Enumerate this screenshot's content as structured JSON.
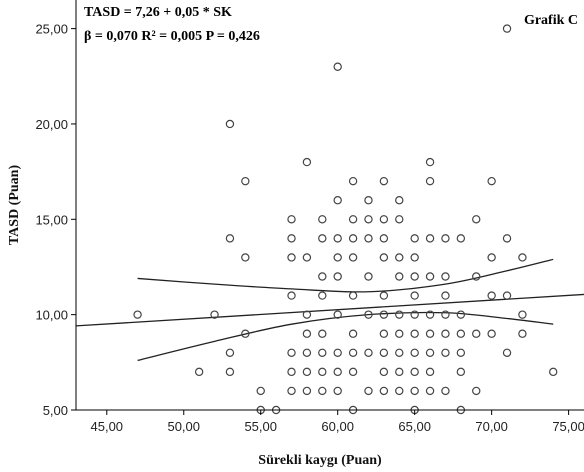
{
  "chart_data": {
    "type": "scatter",
    "panel_label": "Grafik C",
    "equation": "TASD = 7,26 + 0,05 * SK",
    "stats": "β = 0,070  R² = 0,005   P = 0,426",
    "xlabel": "Sürekli kaygı (Puan)",
    "ylabel": "TASD (Puan)",
    "xlim": [
      43.0,
      76.0
    ],
    "ylim": [
      5.0,
      26.5
    ],
    "x_ticks": [
      45,
      50,
      55,
      60,
      65,
      70,
      75
    ],
    "x_tick_labels": [
      "45,00",
      "50,00",
      "55,00",
      "60,00",
      "65,00",
      "70,00",
      "75,00"
    ],
    "y_ticks": [
      5,
      10,
      15,
      20,
      25
    ],
    "y_tick_labels": [
      "5,00",
      "10,00",
      "15,00",
      "20,00",
      "25,00"
    ],
    "grid": false,
    "regression_line": {
      "intercept": 7.26,
      "slope": 0.05
    },
    "ci_upper": [
      [
        47,
        11.9
      ],
      [
        52,
        11.6
      ],
      [
        57,
        11.35
      ],
      [
        62,
        11.2
      ],
      [
        67,
        11.6
      ],
      [
        71,
        12.3
      ],
      [
        74,
        12.9
      ]
    ],
    "ci_lower": [
      [
        47,
        7.6
      ],
      [
        52,
        8.6
      ],
      [
        57,
        9.5
      ],
      [
        62,
        10.0
      ],
      [
        67,
        10.1
      ],
      [
        71,
        9.8
      ],
      [
        74,
        9.5
      ]
    ],
    "points": [
      [
        47,
        10
      ],
      [
        51,
        7
      ],
      [
        52,
        10
      ],
      [
        53,
        20
      ],
      [
        53,
        14
      ],
      [
        53,
        8
      ],
      [
        53,
        7
      ],
      [
        54,
        17
      ],
      [
        54,
        13
      ],
      [
        54,
        9
      ],
      [
        55,
        6
      ],
      [
        55,
        5
      ],
      [
        56,
        5
      ],
      [
        57,
        15
      ],
      [
        57,
        14
      ],
      [
        57,
        13
      ],
      [
        57,
        11
      ],
      [
        57,
        8
      ],
      [
        57,
        7
      ],
      [
        57,
        6
      ],
      [
        58,
        18
      ],
      [
        58,
        13
      ],
      [
        58,
        10
      ],
      [
        58,
        9
      ],
      [
        58,
        8
      ],
      [
        58,
        7
      ],
      [
        58,
        6
      ],
      [
        59,
        15
      ],
      [
        59,
        14
      ],
      [
        59,
        12
      ],
      [
        59,
        11
      ],
      [
        59,
        9
      ],
      [
        59,
        8
      ],
      [
        59,
        7
      ],
      [
        59,
        6
      ],
      [
        60,
        23
      ],
      [
        60,
        16
      ],
      [
        60,
        14
      ],
      [
        60,
        13
      ],
      [
        60,
        12
      ],
      [
        60,
        10
      ],
      [
        60,
        8
      ],
      [
        60,
        7
      ],
      [
        60,
        6
      ],
      [
        61,
        17
      ],
      [
        61,
        15
      ],
      [
        61,
        14
      ],
      [
        61,
        13
      ],
      [
        61,
        11
      ],
      [
        61,
        9
      ],
      [
        61,
        8
      ],
      [
        61,
        7
      ],
      [
        61,
        5
      ],
      [
        62,
        16
      ],
      [
        62,
        15
      ],
      [
        62,
        14
      ],
      [
        62,
        12
      ],
      [
        62,
        10
      ],
      [
        62,
        8
      ],
      [
        62,
        6
      ],
      [
        63,
        17
      ],
      [
        63,
        15
      ],
      [
        63,
        14
      ],
      [
        63,
        13
      ],
      [
        63,
        11
      ],
      [
        63,
        10
      ],
      [
        63,
        9
      ],
      [
        63,
        8
      ],
      [
        63,
        7
      ],
      [
        63,
        6
      ],
      [
        64,
        16
      ],
      [
        64,
        15
      ],
      [
        64,
        13
      ],
      [
        64,
        12
      ],
      [
        64,
        10
      ],
      [
        64,
        9
      ],
      [
        64,
        8
      ],
      [
        64,
        7
      ],
      [
        64,
        6
      ],
      [
        65,
        14
      ],
      [
        65,
        13
      ],
      [
        65,
        12
      ],
      [
        65,
        11
      ],
      [
        65,
        10
      ],
      [
        65,
        9
      ],
      [
        65,
        8
      ],
      [
        65,
        7
      ],
      [
        65,
        6
      ],
      [
        65,
        5
      ],
      [
        66,
        18
      ],
      [
        66,
        17
      ],
      [
        66,
        14
      ],
      [
        66,
        12
      ],
      [
        66,
        10
      ],
      [
        66,
        9
      ],
      [
        66,
        8
      ],
      [
        66,
        7
      ],
      [
        66,
        6
      ],
      [
        67,
        14
      ],
      [
        67,
        12
      ],
      [
        67,
        11
      ],
      [
        67,
        10
      ],
      [
        67,
        9
      ],
      [
        67,
        8
      ],
      [
        67,
        6
      ],
      [
        68,
        14
      ],
      [
        68,
        10
      ],
      [
        68,
        9
      ],
      [
        68,
        8
      ],
      [
        68,
        7
      ],
      [
        68,
        5
      ],
      [
        69,
        15
      ],
      [
        69,
        12
      ],
      [
        69,
        9
      ],
      [
        69,
        6
      ],
      [
        70,
        17
      ],
      [
        70,
        13
      ],
      [
        70,
        11
      ],
      [
        70,
        9
      ],
      [
        71,
        25
      ],
      [
        71,
        14
      ],
      [
        71,
        11
      ],
      [
        71,
        8
      ],
      [
        72,
        13
      ],
      [
        72,
        10
      ],
      [
        72,
        9
      ],
      [
        74,
        7
      ]
    ],
    "colors": {
      "marker": "#444444",
      "line": "#222222",
      "axis": "#000000"
    }
  }
}
